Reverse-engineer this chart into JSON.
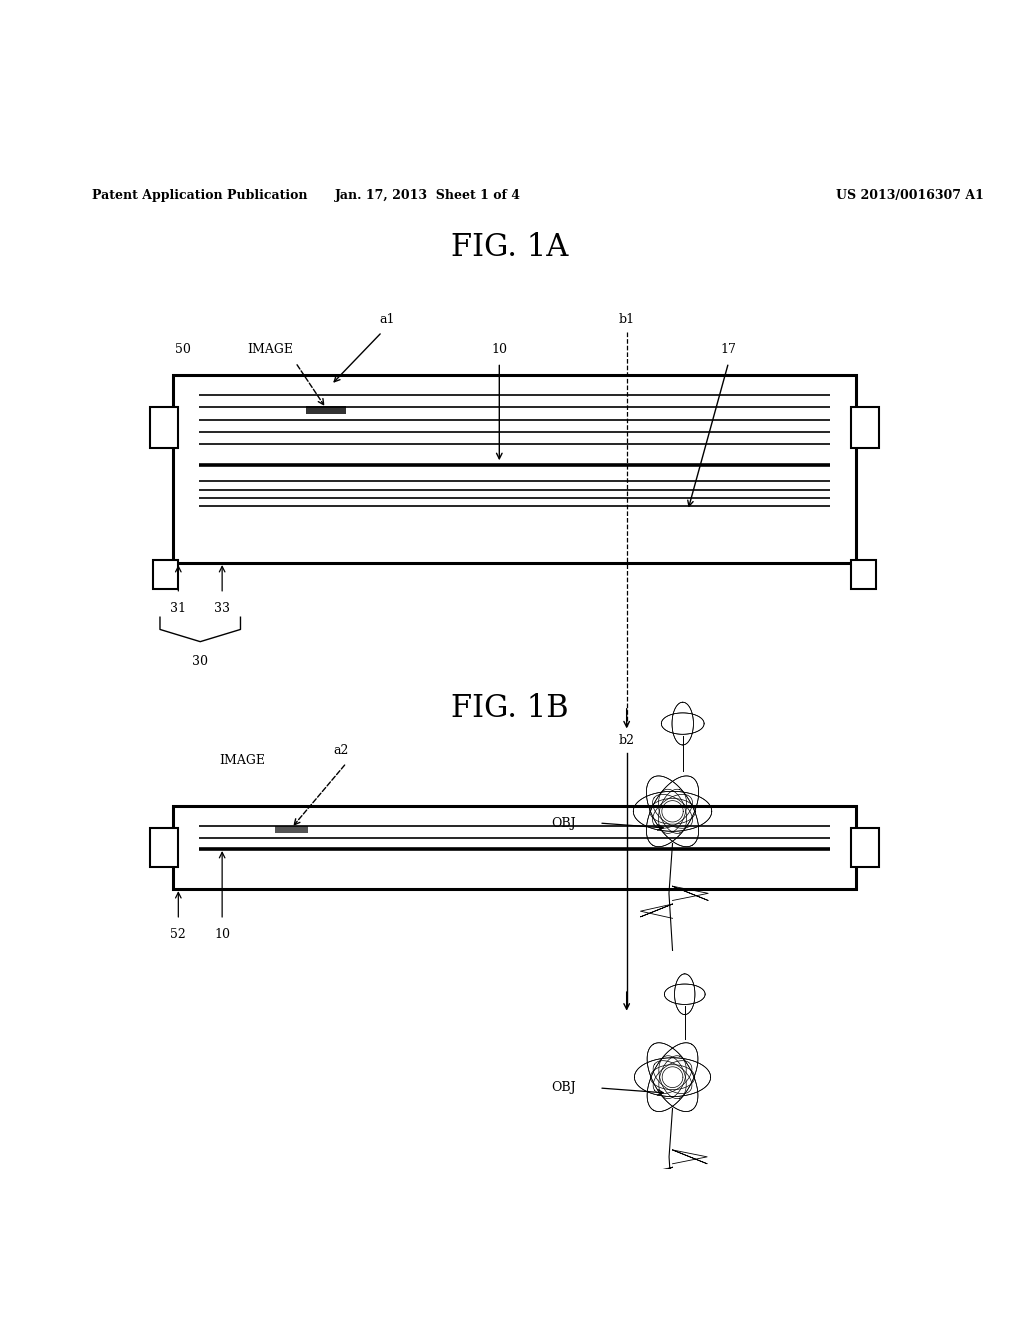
{
  "bg_color": "#ffffff",
  "text_color": "#000000",
  "header_left": "Patent Application Publication",
  "header_mid": "Jan. 17, 2013  Sheet 1 of 4",
  "header_right": "US 2013/0016307 A1",
  "fig1a_title": "FIG. 1A",
  "fig1b_title": "FIG. 1B"
}
